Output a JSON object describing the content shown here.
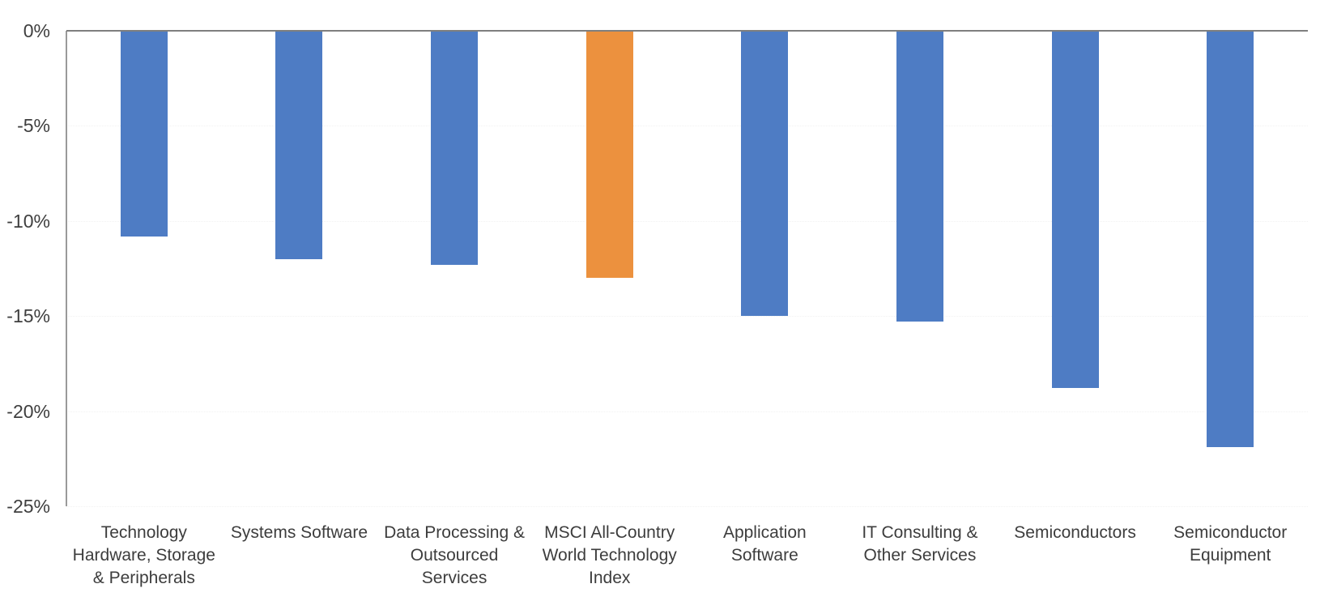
{
  "chart_data": {
    "type": "bar",
    "orientation": "vertical",
    "title": "",
    "xlabel": "",
    "ylabel": "",
    "unit": "%",
    "ylim": [
      -25,
      0
    ],
    "y_ticks": [
      "0%",
      "-5%",
      "-10%",
      "-15%",
      "-20%",
      "-25%"
    ],
    "y_tick_values": [
      0,
      -5,
      -10,
      -15,
      -20,
      -25
    ],
    "grid": "off",
    "legend": "none",
    "categories": [
      "Technology\nHardware, Storage\n& Peripherals",
      "Systems Software",
      "Data Processing &\nOutsourced Services",
      "MSCI All-Country\nWorld Technology\nIndex",
      "Application\nSoftware",
      "IT Consulting &\nOther Services",
      "Semiconductors",
      "Semiconductor\nEquipment"
    ],
    "values": [
      -10.8,
      -12.0,
      -12.3,
      -13.0,
      -15.0,
      -15.3,
      -18.8,
      -21.9
    ],
    "highlight_index": 3,
    "colors": {
      "bar": "#4E7CC4",
      "highlight_bar": "#EC913E",
      "axis_line": "#7F7F7F",
      "text": "#3F3F3F"
    }
  }
}
